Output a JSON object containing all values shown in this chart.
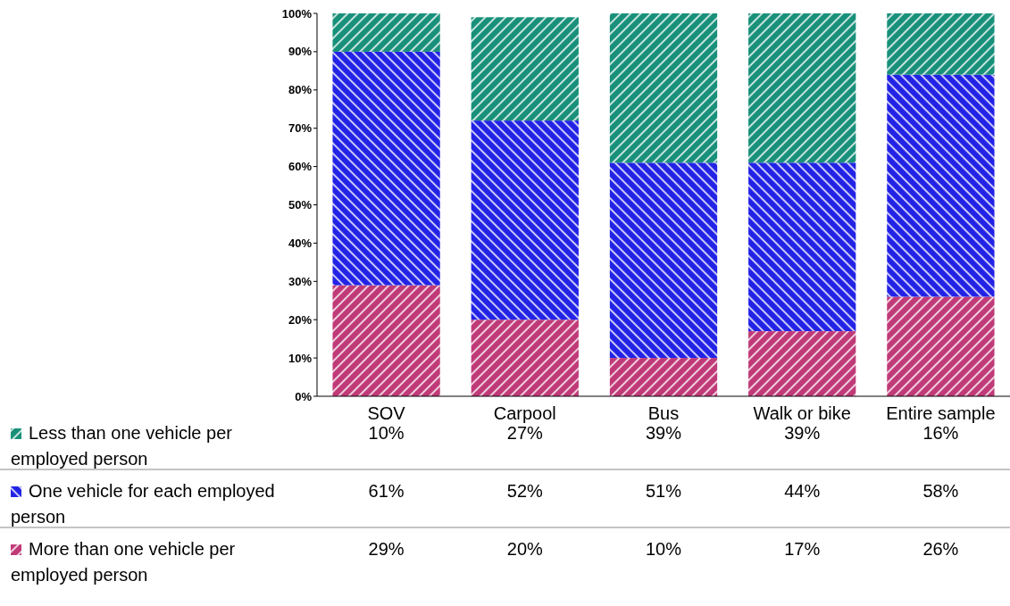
{
  "chart_data": {
    "type": "bar",
    "stacked": true,
    "categories": [
      "SOV",
      "Carpool",
      "Bus",
      "Walk or bike",
      "Entire sample"
    ],
    "series": [
      {
        "name": "More than one vehicle per employed person",
        "color": "#c03a78",
        "values": [
          29,
          20,
          10,
          17,
          26
        ],
        "value_labels": [
          "29%",
          "20%",
          "10%",
          "17%",
          "26%"
        ]
      },
      {
        "name": "One vehicle for each employed person",
        "color": "#2323e6",
        "values": [
          61,
          52,
          51,
          44,
          58
        ],
        "value_labels": [
          "61%",
          "52%",
          "51%",
          "44%",
          "58%"
        ]
      },
      {
        "name": "Less than one vehicle per employed person",
        "color": "#18907a",
        "values": [
          10,
          27,
          39,
          39,
          16
        ],
        "value_labels": [
          "10%",
          "27%",
          "39%",
          "39%",
          "16%"
        ]
      }
    ],
    "ylim": [
      0,
      100
    ],
    "yticks": [
      {
        "value": 0,
        "label": "0%"
      },
      {
        "value": 10,
        "label": "10%"
      },
      {
        "value": 20,
        "label": "20%"
      },
      {
        "value": 30,
        "label": "30%"
      },
      {
        "value": 40,
        "label": "40%"
      },
      {
        "value": 50,
        "label": "50%"
      },
      {
        "value": 60,
        "label": "60%"
      },
      {
        "value": 70,
        "label": "70%"
      },
      {
        "value": 80,
        "label": "80%"
      },
      {
        "value": 90,
        "label": "90%"
      },
      {
        "value": 100,
        "label": "100%"
      }
    ],
    "grid": false,
    "legend": "bottom left"
  }
}
